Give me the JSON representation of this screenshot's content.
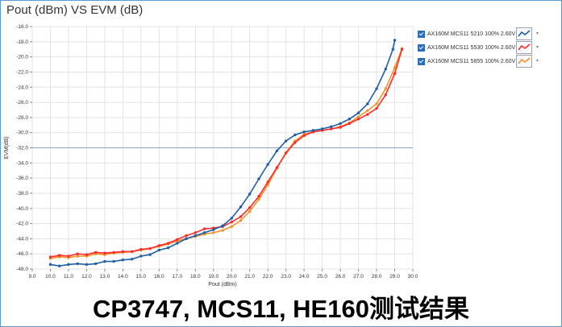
{
  "chart_data": {
    "type": "line",
    "title": "Pout (dBm) VS EVM (dB)",
    "xlabel": "Pout (dBm)",
    "ylabel": "EVM(dB)",
    "xlim": [
      9.0,
      30.0
    ],
    "ylim": [
      -48.0,
      -16.0
    ],
    "xticks": [
      9.0,
      10.0,
      11.0,
      12.0,
      13.0,
      14.0,
      15.0,
      16.0,
      17.0,
      18.0,
      19.0,
      20.0,
      21.0,
      22.0,
      23.0,
      24.0,
      25.0,
      26.0,
      27.0,
      28.0,
      29.0,
      30.0
    ],
    "xtick_labels": [
      "9.0",
      "10.0",
      "11.0",
      "12.0",
      "13.0",
      "14.0",
      "15.0",
      "16.0",
      "17.0",
      "18.0",
      "19.0",
      "20.0",
      "21.0",
      "22.0",
      "23.0",
      "24.0",
      "25.0",
      "26.0",
      "27.0",
      "28.0",
      "29.0",
      "30.0"
    ],
    "yticks": [
      -16,
      -18,
      -20,
      -22,
      -24,
      -26,
      -28,
      -30,
      -32,
      -34,
      -36,
      -38,
      -40,
      -42,
      -44,
      -46,
      -48
    ],
    "ytick_labels": [
      "-16.0",
      "-18.0",
      "-20.0",
      "-22.0",
      "-24.0",
      "-26.0",
      "-28.0",
      "-30.0",
      "-32.0",
      "-34.0",
      "-36.0",
      "-38.0",
      "-40.0",
      "-42.0",
      "-44.0",
      "-46.0",
      "-48.0"
    ],
    "grid": true,
    "reference_line_y": -32.0,
    "legend_position": "top-right",
    "series": [
      {
        "name": "AX160M MCS11 5210 100% 2.60V",
        "color": "#1f5fa8",
        "x": [
          10.0,
          10.5,
          11.0,
          11.5,
          12.0,
          12.5,
          13.0,
          13.5,
          14.0,
          14.5,
          15.0,
          15.5,
          16.0,
          16.5,
          17.0,
          17.5,
          18.0,
          18.5,
          19.0,
          19.5,
          20.0,
          20.5,
          21.0,
          21.5,
          22.0,
          22.5,
          23.0,
          23.5,
          24.0,
          24.5,
          25.0,
          25.5,
          26.0,
          26.5,
          27.0,
          27.5,
          28.0,
          28.5,
          28.9,
          29.0
        ],
        "y": [
          -47.4,
          -47.6,
          -47.4,
          -47.3,
          -47.4,
          -47.3,
          -47.0,
          -47.0,
          -46.8,
          -46.7,
          -46.3,
          -46.1,
          -45.5,
          -45.2,
          -44.6,
          -44.0,
          -43.6,
          -43.2,
          -42.8,
          -42.3,
          -41.3,
          -39.8,
          -38.1,
          -36.1,
          -34.2,
          -32.4,
          -31.1,
          -30.3,
          -29.9,
          -29.7,
          -29.5,
          -29.2,
          -28.8,
          -28.2,
          -27.4,
          -26.2,
          -24.2,
          -21.6,
          -19.0,
          -17.8
        ]
      },
      {
        "name": "AX160M MCS11 5530 100% 2.60V",
        "color": "#ff2a2a",
        "x": [
          10.0,
          10.5,
          11.0,
          11.5,
          12.0,
          12.5,
          13.0,
          13.5,
          14.0,
          14.5,
          15.0,
          15.5,
          16.0,
          16.5,
          17.0,
          17.5,
          18.0,
          18.5,
          19.0,
          19.5,
          20.0,
          20.5,
          21.0,
          21.5,
          22.0,
          22.5,
          23.0,
          23.5,
          24.0,
          24.5,
          25.0,
          25.5,
          26.0,
          26.5,
          27.0,
          27.5,
          28.0,
          28.5,
          29.0,
          29.4
        ],
        "y": [
          -46.4,
          -46.2,
          -46.3,
          -46.0,
          -46.1,
          -45.8,
          -45.9,
          -45.8,
          -45.7,
          -45.7,
          -45.4,
          -45.3,
          -44.9,
          -44.6,
          -44.1,
          -43.6,
          -43.2,
          -42.7,
          -42.6,
          -42.4,
          -41.8,
          -41.1,
          -39.9,
          -38.4,
          -36.5,
          -34.6,
          -32.7,
          -31.3,
          -30.4,
          -29.9,
          -29.7,
          -29.5,
          -29.3,
          -28.8,
          -28.2,
          -27.6,
          -26.8,
          -25.0,
          -22.2,
          -19.0
        ]
      },
      {
        "name": "AX160M MCS11 5855 100% 2.60V",
        "color": "#f4922b",
        "x": [
          10.0,
          10.5,
          11.0,
          11.5,
          12.0,
          12.5,
          13.0,
          13.5,
          14.0,
          14.5,
          15.0,
          15.5,
          16.0,
          16.5,
          17.0,
          17.5,
          18.0,
          18.5,
          19.0,
          19.5,
          20.0,
          20.5,
          21.0,
          21.5,
          22.0,
          22.5,
          23.0,
          23.5,
          24.0,
          24.5,
          25.0,
          25.5,
          26.0,
          26.5,
          27.0,
          27.5,
          28.0,
          28.5,
          29.0,
          29.4
        ],
        "y": [
          -46.6,
          -46.4,
          -46.5,
          -46.3,
          -46.3,
          -46.0,
          -46.1,
          -45.9,
          -45.8,
          -45.7,
          -45.5,
          -45.3,
          -45.0,
          -44.7,
          -44.3,
          -44.0,
          -43.7,
          -43.4,
          -43.2,
          -42.9,
          -42.4,
          -41.6,
          -40.4,
          -38.8,
          -36.9,
          -34.7,
          -32.6,
          -31.1,
          -30.2,
          -29.9,
          -29.7,
          -29.5,
          -29.2,
          -28.7,
          -27.9,
          -27.1,
          -26.2,
          -24.2,
          -21.4,
          -18.9
        ]
      }
    ]
  },
  "caption": "CP3747, MCS11, HE160测试结果"
}
